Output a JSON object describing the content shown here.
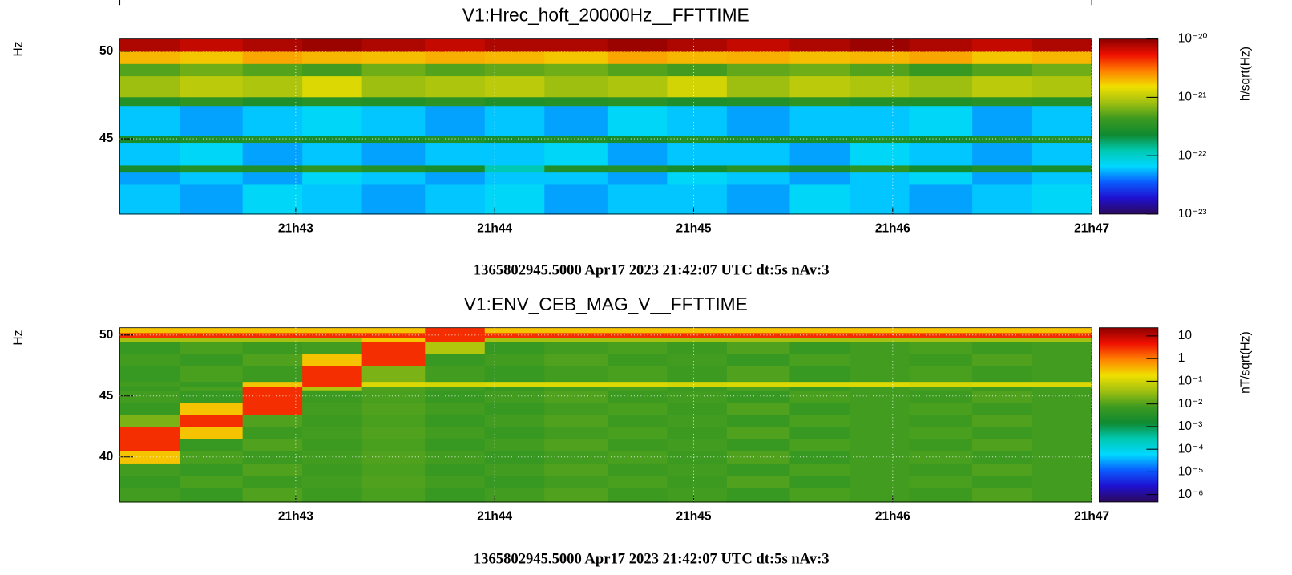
{
  "chart_data": [
    {
      "type": "heatmap",
      "title": "V1:Hrec_hoft_20000Hz__FFTTIME",
      "ylabel": "Hz",
      "zlabel": "h/sqrt(Hz)",
      "footer": "1365802945.5000 Apr17 2023 21:42:07 UTC dt:5s nAv:3",
      "xlim": [
        78127,
        78420
      ],
      "xticks": [
        {
          "value": 78180,
          "label": "21h43"
        },
        {
          "value": 78240,
          "label": "21h44"
        },
        {
          "value": 78300,
          "label": "21h45"
        },
        {
          "value": 78360,
          "label": "21h46"
        },
        {
          "value": 78420,
          "label": "21h47"
        }
      ],
      "ylim": [
        40.7,
        50.7
      ],
      "yticks": [
        45,
        50
      ],
      "zlim": [
        1e-23,
        1e-20
      ],
      "zscale": "log",
      "zticks": [
        {
          "value": 1e-23,
          "label": "10⁻²³"
        },
        {
          "value": 1e-22,
          "label": "10⁻²²"
        },
        {
          "value": 1e-21,
          "label": "10⁻²¹"
        },
        {
          "value": 1e-20,
          "label": "10⁻²⁰"
        }
      ],
      "grid": true,
      "colormap": [
        "#2b0a5a",
        "#1f10d0",
        "#0a5cff",
        "#00d8ff",
        "#00c8b0",
        "#108a30",
        "#3d9a20",
        "#a0c010",
        "#f0e000",
        "#ff8000",
        "#f01000",
        "#8a0000"
      ],
      "x_bins": [
        78127,
        78145,
        78164,
        78182,
        78200,
        78219,
        78237,
        78255,
        78274,
        78292,
        78310,
        78329,
        78347,
        78365,
        78384,
        78402,
        78420
      ],
      "y_bins": [
        40.7,
        42.4,
        43.1,
        43.5,
        44.8,
        45.2,
        46.9,
        47.4,
        48.6,
        49.3,
        50.0,
        50.7
      ],
      "z": [
        [
          6e-23,
          5e-23,
          7e-23,
          6e-23,
          5e-23,
          6e-23,
          7e-23,
          5e-23,
          6e-23,
          6e-23,
          5e-23,
          7e-23,
          6e-23,
          5e-23,
          6e-23,
          7e-23
        ],
        [
          5e-23,
          6e-23,
          5e-23,
          7e-23,
          6e-23,
          5e-23,
          6e-23,
          6e-23,
          5e-23,
          7e-23,
          6e-23,
          5e-23,
          6e-23,
          7e-23,
          5e-23,
          6e-23
        ],
        [
          2.5e-22,
          3e-22,
          2.8e-22,
          3.5e-22,
          3e-22,
          2.6e-22,
          1.2e-22,
          2.8e-22,
          3e-22,
          2.5e-22,
          3.2e-22,
          2.7e-22,
          3.5e-22,
          2.4e-22,
          3e-22,
          2.6e-22
        ],
        [
          6e-23,
          7e-23,
          5e-23,
          6e-23,
          5e-23,
          6e-23,
          6e-23,
          7e-23,
          5e-23,
          6e-23,
          6e-23,
          5e-23,
          7e-23,
          6e-23,
          5e-23,
          6e-23
        ],
        [
          2.6e-22,
          2.8e-22,
          3e-22,
          2.5e-22,
          2.7e-22,
          3e-22,
          2.6e-22,
          2.8e-22,
          2.5e-22,
          3e-22,
          2.7e-22,
          2.6e-22,
          2.9e-22,
          2.5e-22,
          2.8e-22,
          3e-22
        ],
        [
          6e-23,
          5e-23,
          6e-23,
          7e-23,
          6e-23,
          5e-23,
          6e-23,
          5e-23,
          7e-23,
          6e-23,
          5e-23,
          6e-23,
          6e-23,
          7e-23,
          5e-23,
          6e-23
        ],
        [
          3e-22,
          3.5e-22,
          2.8e-22,
          3.2e-22,
          3e-22,
          3.4e-22,
          2.9e-22,
          3.1e-22,
          3.3e-22,
          2.8e-22,
          3e-22,
          3.5e-22,
          3e-22,
          2.9e-22,
          3.2e-22,
          3e-22
        ],
        [
          8e-22,
          1e-21,
          9e-22,
          1.3e-21,
          8e-22,
          9e-22,
          1e-21,
          8e-22,
          9e-22,
          1.2e-21,
          8e-22,
          1e-21,
          9e-22,
          8e-22,
          1e-21,
          9e-22
        ],
        [
          5e-22,
          6e-22,
          5e-22,
          4.5e-22,
          6e-22,
          5e-22,
          5.5e-22,
          6e-22,
          5e-22,
          4.5e-22,
          5.5e-22,
          6e-22,
          5e-22,
          4e-22,
          5e-22,
          6e-22
        ],
        [
          2e-21,
          1.8e-21,
          2.2e-21,
          2e-21,
          1.9e-21,
          2.1e-21,
          2e-21,
          1.8e-21,
          2.2e-21,
          2e-21,
          2.1e-21,
          1.9e-21,
          2e-21,
          2.2e-21,
          1.8e-21,
          2e-21
        ],
        [
          8e-21,
          7e-21,
          8e-21,
          9e-21,
          8e-21,
          7e-21,
          8e-21,
          8e-21,
          9e-21,
          8e-21,
          7e-21,
          8e-21,
          9e-21,
          8e-21,
          7e-21,
          8e-21
        ]
      ]
    },
    {
      "type": "heatmap",
      "title": "V1:ENV_CEB_MAG_V__FFTTIME",
      "ylabel": "Hz",
      "zlabel": "nT/sqrt(Hz)",
      "footer": "1365802945.5000 Apr17 2023 21:42:07 UTC dt:5s nAv:3",
      "xlim": [
        78127,
        78420
      ],
      "xticks": [
        {
          "value": 78180,
          "label": "21h43"
        },
        {
          "value": 78240,
          "label": "21h44"
        },
        {
          "value": 78300,
          "label": "21h45"
        },
        {
          "value": 78360,
          "label": "21h46"
        },
        {
          "value": 78420,
          "label": "21h47"
        }
      ],
      "ylim": [
        36.3,
        50.6
      ],
      "yticks": [
        40,
        45,
        50
      ],
      "zlim": [
        4.7e-07,
        23
      ],
      "zscale": "log",
      "zticks": [
        {
          "value": 1e-06,
          "label": "10⁻⁶"
        },
        {
          "value": 1e-05,
          "label": "10⁻⁵"
        },
        {
          "value": 0.0001,
          "label": "10⁻⁴"
        },
        {
          "value": 0.001,
          "label": "10⁻³"
        },
        {
          "value": 0.01,
          "label": "10⁻²"
        },
        {
          "value": 0.1,
          "label": "10⁻¹"
        },
        1,
        10
      ],
      "grid": true,
      "colormap": [
        "#2b0a5a",
        "#1f10d0",
        "#0a5cff",
        "#00d8ff",
        "#00c8b0",
        "#108a30",
        "#3d9a20",
        "#a0c010",
        "#f0e000",
        "#ff8000",
        "#f01000",
        "#8a0000"
      ],
      "x_bins": [
        78127,
        78145,
        78164,
        78182,
        78200,
        78219,
        78237,
        78255,
        78274,
        78292,
        78310,
        78329,
        78347,
        78365,
        78384,
        78402,
        78420
      ],
      "y_bins": [
        36.3,
        37.5,
        38.5,
        39.5,
        40.5,
        41.5,
        42.5,
        43.5,
        44.5,
        45.5,
        45.8,
        46.2,
        47.5,
        48.5,
        49.5,
        49.8,
        50.2,
        50.6
      ],
      "z": [
        [
          0.008,
          0.006,
          0.01,
          0.007,
          0.009,
          0.006,
          0.008,
          0.01,
          0.007,
          0.008,
          0.006,
          0.009,
          0.008,
          0.007,
          0.01,
          0.008
        ],
        [
          0.006,
          0.009,
          0.007,
          0.008,
          0.01,
          0.008,
          0.006,
          0.008,
          0.009,
          0.007,
          0.01,
          0.006,
          0.008,
          0.009,
          0.007,
          0.008
        ],
        [
          0.008,
          0.006,
          0.01,
          0.007,
          0.009,
          0.006,
          0.008,
          0.01,
          0.007,
          0.008,
          0.006,
          0.009,
          0.008,
          0.007,
          0.01,
          0.008
        ],
        [
          0.3,
          0.009,
          0.007,
          0.008,
          0.01,
          0.008,
          0.006,
          0.008,
          0.009,
          0.007,
          0.01,
          0.006,
          0.008,
          0.009,
          0.007,
          0.008
        ],
        [
          3,
          0.006,
          0.01,
          0.007,
          0.009,
          0.006,
          0.008,
          0.01,
          0.007,
          0.008,
          0.006,
          0.009,
          0.008,
          0.007,
          0.01,
          0.008
        ],
        [
          3,
          0.3,
          0.007,
          0.008,
          0.01,
          0.008,
          0.006,
          0.008,
          0.009,
          0.007,
          0.01,
          0.006,
          0.008,
          0.009,
          0.007,
          0.008
        ],
        [
          0.02,
          3,
          0.01,
          0.007,
          0.009,
          0.006,
          0.008,
          0.01,
          0.007,
          0.008,
          0.006,
          0.009,
          0.008,
          0.007,
          0.01,
          0.008
        ],
        [
          0.006,
          0.3,
          3,
          0.008,
          0.01,
          0.008,
          0.006,
          0.008,
          0.009,
          0.007,
          0.01,
          0.006,
          0.008,
          0.009,
          0.007,
          0.008
        ],
        [
          0.008,
          0.006,
          3,
          0.007,
          0.009,
          0.006,
          0.008,
          0.01,
          0.007,
          0.008,
          0.006,
          0.009,
          0.008,
          0.007,
          0.01,
          0.008
        ],
        [
          0.006,
          0.009,
          3,
          0.05,
          0.01,
          0.008,
          0.006,
          0.008,
          0.009,
          0.007,
          0.01,
          0.006,
          0.008,
          0.009,
          0.007,
          0.008
        ],
        [
          0.008,
          0.006,
          0.3,
          3,
          0.12,
          0.11,
          0.12,
          0.13,
          0.12,
          0.11,
          0.12,
          0.12,
          0.13,
          0.11,
          0.12,
          0.12
        ],
        [
          0.006,
          0.009,
          0.007,
          3,
          0.02,
          0.008,
          0.006,
          0.008,
          0.009,
          0.007,
          0.01,
          0.006,
          0.008,
          0.009,
          0.007,
          0.008
        ],
        [
          0.008,
          0.006,
          0.01,
          0.3,
          3,
          0.006,
          0.008,
          0.01,
          0.007,
          0.008,
          0.006,
          0.009,
          0.008,
          0.007,
          0.01,
          0.008
        ],
        [
          0.006,
          0.009,
          0.007,
          0.008,
          3,
          0.05,
          0.006,
          0.008,
          0.009,
          0.007,
          0.01,
          0.006,
          0.008,
          0.009,
          0.007,
          0.008
        ],
        [
          0.04,
          0.04,
          0.04,
          0.04,
          0.3,
          3,
          0.04,
          0.04,
          0.04,
          0.04,
          0.04,
          0.04,
          0.04,
          0.04,
          0.04,
          0.04
        ],
        [
          3,
          3,
          3,
          3,
          3,
          3,
          3,
          3,
          3,
          3,
          3,
          3,
          3,
          3,
          3,
          3
        ],
        [
          0.3,
          0.3,
          0.3,
          0.3,
          0.3,
          3,
          0.3,
          0.3,
          0.3,
          0.3,
          0.3,
          0.3,
          0.3,
          0.3,
          0.3,
          0.3
        ]
      ]
    }
  ]
}
